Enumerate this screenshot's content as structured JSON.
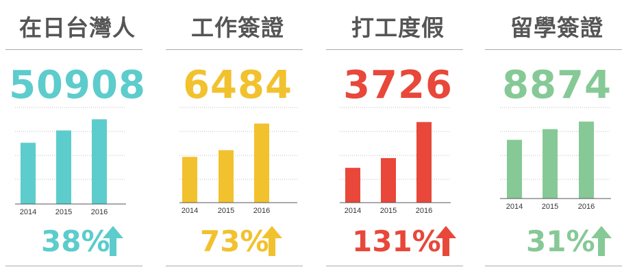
{
  "panels": [
    {
      "title": "在日台灣人",
      "total": "50908",
      "change": "38%",
      "color": "#5ccccc",
      "arrow_icon": "up-arrow-icon"
    },
    {
      "title": "工作簽證",
      "total": "6484",
      "change": "73%",
      "color": "#f2c12e",
      "arrow_icon": "up-arrow-icon"
    },
    {
      "title": "打工度假",
      "total": "3726",
      "change": "131%",
      "color": "#e8473a",
      "arrow_icon": "up-arrow-icon"
    },
    {
      "title": "留學簽證",
      "total": "8874",
      "change": "31%",
      "color": "#86c996",
      "arrow_icon": "up-arrow-icon"
    }
  ],
  "chart_data": [
    {
      "type": "bar",
      "title": "在日台灣人",
      "categories": [
        "2014",
        "2015",
        "2016"
      ],
      "values": [
        36800,
        44200,
        50908
      ],
      "ylim": [
        0,
        58000
      ],
      "grid": true
    },
    {
      "type": "bar",
      "title": "工作簽證",
      "categories": [
        "2014",
        "2015",
        "2016"
      ],
      "values": [
        3750,
        4300,
        6484
      ],
      "ylim": [
        0,
        7800
      ],
      "grid": true
    },
    {
      "type": "bar",
      "title": "打工度假",
      "categories": [
        "2014",
        "2015",
        "2016"
      ],
      "values": [
        1610,
        2060,
        3726
      ],
      "ylim": [
        0,
        4400
      ],
      "grid": true
    },
    {
      "type": "bar",
      "title": "留學簽證",
      "categories": [
        "2014",
        "2015",
        "2016"
      ],
      "values": [
        6770,
        8000,
        8874
      ],
      "ylim": [
        0,
        10500
      ],
      "grid": true
    }
  ]
}
